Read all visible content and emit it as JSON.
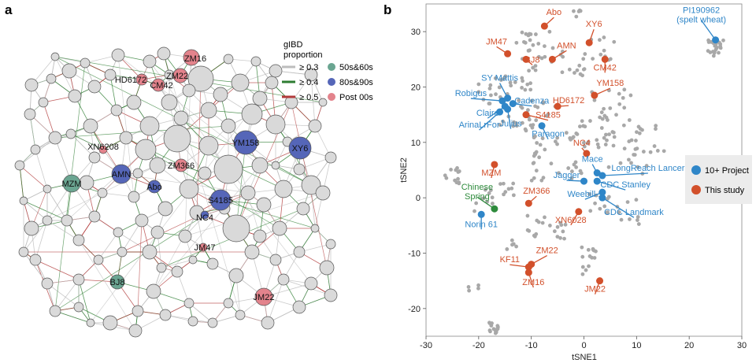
{
  "panels": {
    "a": "a",
    "b": "b"
  },
  "network": {
    "legend_title": [
      "gIBD",
      "proportion"
    ],
    "edge_legend": [
      {
        "label": "≥ 0.3",
        "color": "#bdbdbd"
      },
      {
        "label": "≥ 0.4",
        "color": "#2e7d32"
      },
      {
        "label": "≥ 0.5",
        "color": "#b23a3a"
      }
    ],
    "node_legend": [
      {
        "label": "50s&60s",
        "color": "#6aa591"
      },
      {
        "label": "80s&90s",
        "color": "#5566b8"
      },
      {
        "label": "Post 00s",
        "color": "#e3838c"
      }
    ],
    "labeled_nodes": [
      {
        "name": "ZM16",
        "group": "Post 00s"
      },
      {
        "name": "HD6172",
        "group": "Post 00s"
      },
      {
        "name": "ZM22",
        "group": "Post 00s"
      },
      {
        "name": "CM42",
        "group": "Post 00s"
      },
      {
        "name": "XN6208",
        "group": "Post 00s"
      },
      {
        "name": "YM158",
        "group": "80s&90s"
      },
      {
        "name": "XY6",
        "group": "80s&90s"
      },
      {
        "name": "AMN",
        "group": "80s&90s"
      },
      {
        "name": "ZM366",
        "group": "Post 00s"
      },
      {
        "name": "Abo",
        "group": "80s&90s"
      },
      {
        "name": "S4185",
        "group": "80s&90s"
      },
      {
        "name": "NC4",
        "group": "80s&90s"
      },
      {
        "name": "MZM",
        "group": "50s&60s"
      },
      {
        "name": "JM47",
        "group": "Post 00s"
      },
      {
        "name": "BJ8",
        "group": "50s&60s"
      },
      {
        "name": "JM22",
        "group": "Post 00s"
      }
    ]
  },
  "chart_data": {
    "type": "scatter",
    "xlabel": "tSNE1",
    "ylabel": "tSNE2",
    "xlim": [
      -30,
      30
    ],
    "ylim": [
      -25,
      35
    ],
    "xticks": [
      -30,
      -20,
      -10,
      0,
      10,
      20,
      30
    ],
    "yticks": [
      -20,
      -10,
      0,
      10,
      20,
      30
    ],
    "legend_position": "right",
    "colors": {
      "background": "#a8a8a8",
      "project": "#2f86c8",
      "study": "#d2502b",
      "chinese_spring": "#2e8b3c"
    },
    "series": [
      {
        "name": "10+ Project",
        "points": [
          {
            "label": "PI190962\n(spelt wheat)",
            "x": 25,
            "y": 28.5
          },
          {
            "label": "SY Mattis",
            "x": -14.5,
            "y": 18
          },
          {
            "label": "Robigus",
            "x": -15.5,
            "y": 17.5
          },
          {
            "label": "Cadenza",
            "x": -13.5,
            "y": 17
          },
          {
            "label": "Claire",
            "x": -15,
            "y": 16.5
          },
          {
            "label": "ArinaLrFor",
            "x": -16,
            "y": 15.5
          },
          {
            "label": "Julius",
            "x": -14.5,
            "y": 16
          },
          {
            "label": "Paragon",
            "x": -8,
            "y": 13
          },
          {
            "label": "Mace",
            "x": 2.5,
            "y": 4.5
          },
          {
            "label": "Jagger",
            "x": 0,
            "y": 3
          },
          {
            "label": "LongReach Lancer",
            "x": 3.5,
            "y": 4
          },
          {
            "label": "CDC Stanley",
            "x": 2.5,
            "y": 3
          },
          {
            "label": "Weebill 1",
            "x": 3.5,
            "y": 1
          },
          {
            "label": "CDC Landmark",
            "x": 3.5,
            "y": 0
          },
          {
            "label": "Norin 61",
            "x": -19.5,
            "y": -3
          }
        ]
      },
      {
        "name": "This study",
        "points": [
          {
            "label": "Abo",
            "x": -7.5,
            "y": 31
          },
          {
            "label": "JM47",
            "x": -14.5,
            "y": 26
          },
          {
            "label": "BJ8",
            "x": -11,
            "y": 25
          },
          {
            "label": "AMN",
            "x": -6,
            "y": 25
          },
          {
            "label": "XY6",
            "x": 1,
            "y": 28
          },
          {
            "label": "CM42",
            "x": 4,
            "y": 25
          },
          {
            "label": "HD6172",
            "x": -5,
            "y": 16.5
          },
          {
            "label": "YM158",
            "x": 2,
            "y": 18.5
          },
          {
            "label": "S4185",
            "x": -11,
            "y": 15
          },
          {
            "label": "NC4",
            "x": 0.5,
            "y": 8
          },
          {
            "label": "MZM",
            "x": -17,
            "y": 6
          },
          {
            "label": "ZM366",
            "x": -10.5,
            "y": -1
          },
          {
            "label": "XN6028",
            "x": -1,
            "y": -2.5
          },
          {
            "label": "KF11",
            "x": -10.5,
            "y": -12.5
          },
          {
            "label": "ZM22",
            "x": -10,
            "y": -12
          },
          {
            "label": "ZM16",
            "x": -10.5,
            "y": -13.5
          },
          {
            "label": "JM22",
            "x": 3,
            "y": -15
          }
        ]
      },
      {
        "name": "",
        "points": [
          {
            "label": "Chinese\nSpring",
            "x": -17,
            "y": -2
          }
        ]
      }
    ]
  }
}
